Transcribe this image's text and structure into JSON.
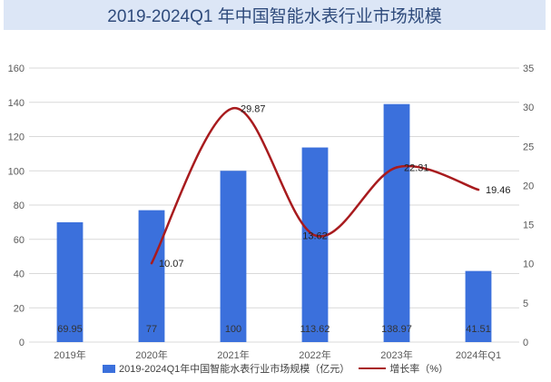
{
  "chart_data": {
    "type": "bar",
    "title": "2019-2024Q1 年中国智能水表行业市场规模",
    "categories": [
      "2019年",
      "2020年",
      "2021年",
      "2022年",
      "2023年",
      "2024年Q1"
    ],
    "series": [
      {
        "name": "2019-2024Q1年中国智能水表行业市场规模（亿元）",
        "type": "bar",
        "axis": "left",
        "color": "#3b70dc",
        "values": [
          69.95,
          77,
          100,
          113.62,
          138.97,
          41.51
        ]
      },
      {
        "name": "增长率（%）",
        "type": "line",
        "axis": "right",
        "color": "#a81b1e",
        "values": [
          null,
          10.07,
          29.87,
          13.62,
          22.31,
          19.46
        ]
      }
    ],
    "ylim": [
      0,
      160
    ],
    "y_ticks": [
      0,
      20,
      40,
      60,
      80,
      100,
      120,
      140,
      160
    ],
    "y2lim": [
      0,
      35
    ],
    "y2_ticks": [
      0,
      5,
      10,
      15,
      20,
      25,
      30,
      35
    ],
    "grid": true,
    "legend": "bottom"
  }
}
